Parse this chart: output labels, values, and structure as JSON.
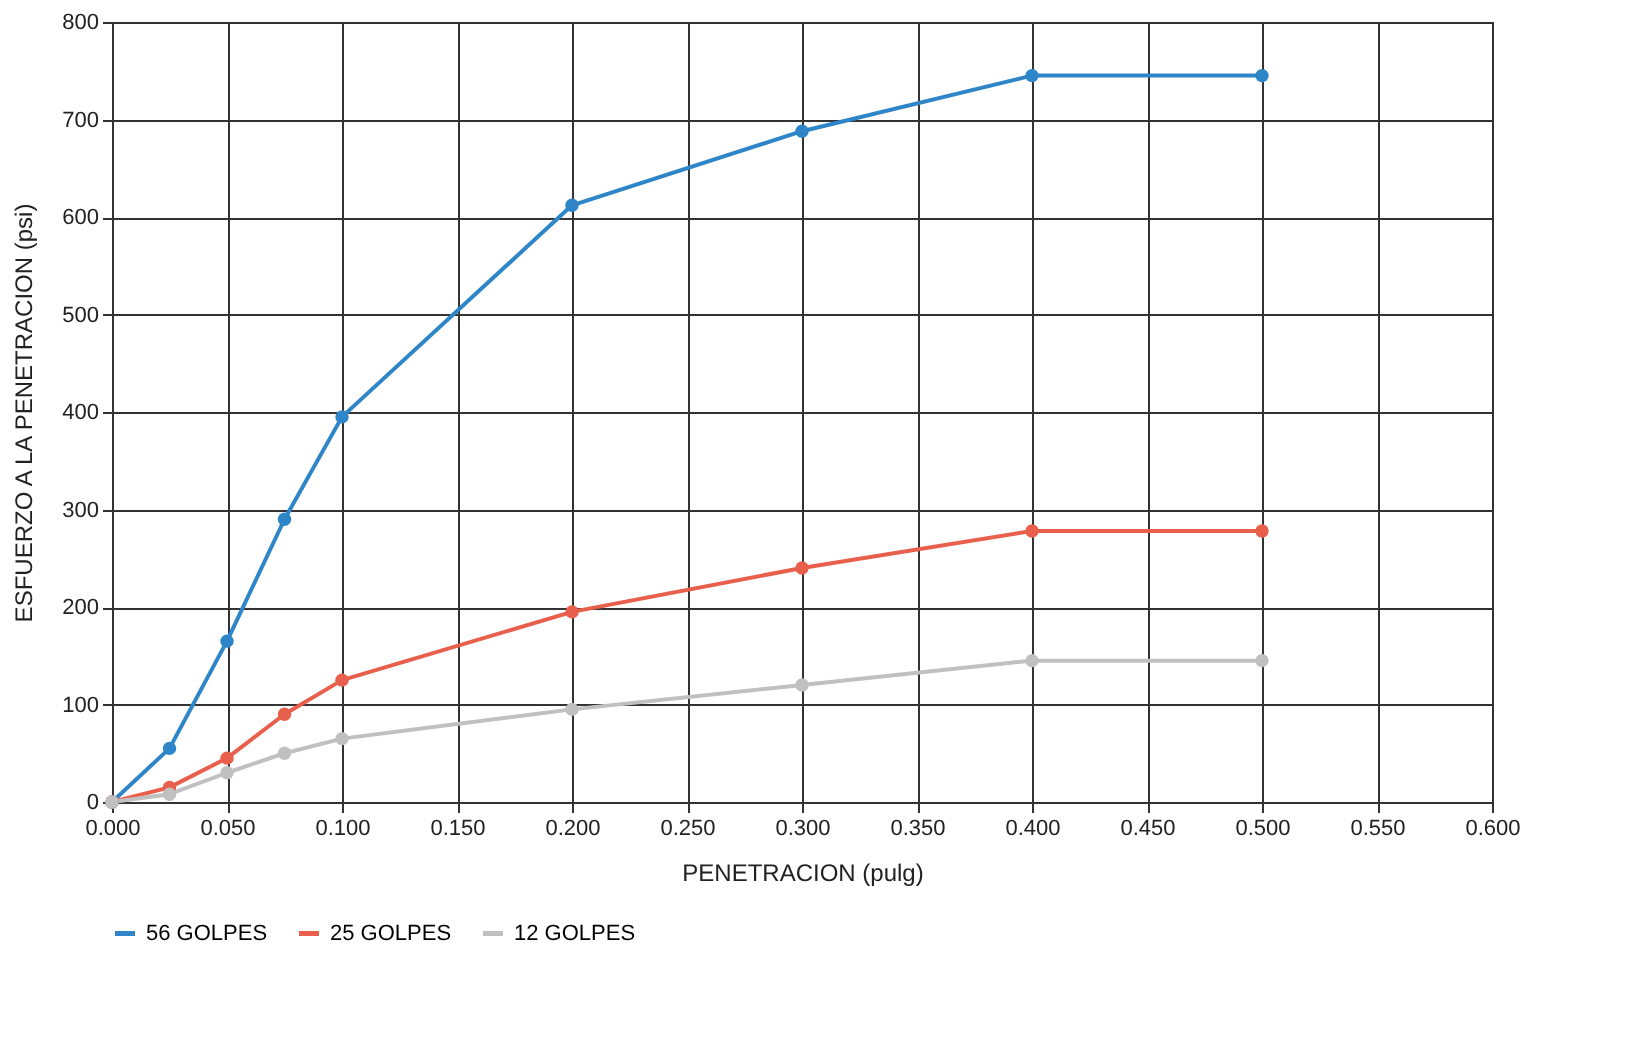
{
  "chart_data": {
    "type": "line",
    "xlabel": "PENETRACION (pulg)",
    "ylabel": "ESFUERZO A LA PENETRACION (psi)",
    "x": [
      0,
      0.025,
      0.05,
      0.075,
      0.1,
      0.2,
      0.3,
      0.4,
      0.5
    ],
    "series": [
      {
        "name": "56 GOLPES",
        "color": "#2e86c8",
        "values": [
          0,
          55,
          165,
          290,
          395,
          612,
          688,
          745,
          745
        ]
      },
      {
        "name": "25 GOLPES",
        "color": "#e8604c",
        "values": [
          0,
          15,
          45,
          90,
          125,
          195,
          240,
          278,
          278
        ]
      },
      {
        "name": "12 GOLPES",
        "color": "#c0c0c0",
        "values": [
          0,
          8,
          30,
          50,
          65,
          95,
          120,
          145,
          145
        ]
      }
    ],
    "xlim": [
      0,
      0.6
    ],
    "xticks": [
      {
        "value": 0,
        "label": "0.000"
      },
      {
        "value": 0.05,
        "label": "0.050"
      },
      {
        "value": 0.1,
        "label": "0.100"
      },
      {
        "value": 0.15,
        "label": "0.150"
      },
      {
        "value": 0.2,
        "label": "0.200"
      },
      {
        "value": 0.25,
        "label": "0.250"
      },
      {
        "value": 0.3,
        "label": "0.300"
      },
      {
        "value": 0.35,
        "label": "0.350"
      },
      {
        "value": 0.4,
        "label": "0.400"
      },
      {
        "value": 0.45,
        "label": "0.450"
      },
      {
        "value": 0.5,
        "label": "0.500"
      },
      {
        "value": 0.55,
        "label": "0.550"
      },
      {
        "value": 0.6,
        "label": "0.600"
      }
    ],
    "ylim": [
      0,
      800
    ],
    "yticks": [
      0,
      100,
      200,
      300,
      400,
      500,
      600,
      700,
      800
    ],
    "grid": true,
    "legend": "bottom",
    "marker": "circle",
    "line_style": "solid"
  }
}
